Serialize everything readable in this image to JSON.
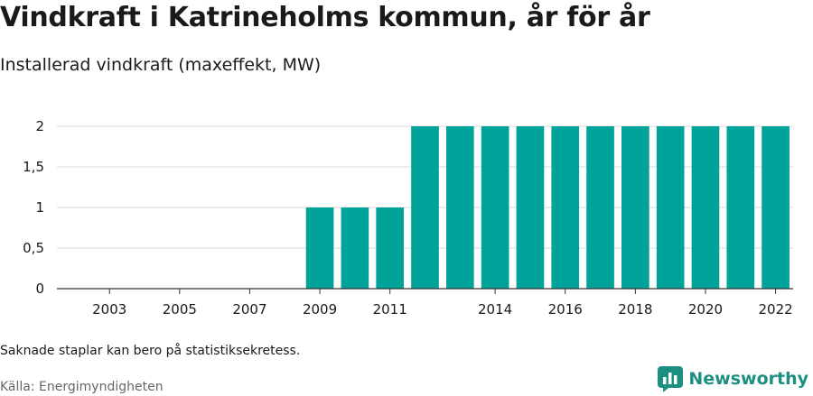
{
  "title": "Vindkraft i Katrineholms kommun, år för år",
  "subtitle": "Installerad vindkraft (maxeffekt, MW)",
  "note": "Saknade staplar kan bero på statistiksekretess.",
  "source": "Källa: Energimyndigheten",
  "brand": {
    "name": "Newsworthy",
    "icon": "newsworthy-logo-icon",
    "color": "#1c8f80"
  },
  "colors": {
    "bar": "#00a39a",
    "grid": "#d9d9d9",
    "axis": "#333333"
  },
  "chart_data": {
    "type": "bar",
    "categories": [
      "2002",
      "2003",
      "2004",
      "2005",
      "2006",
      "2007",
      "2008",
      "2009",
      "2010",
      "2011",
      "2012",
      "2013",
      "2014",
      "2015",
      "2016",
      "2017",
      "2018",
      "2019",
      "2020",
      "2021",
      "2022"
    ],
    "values": [
      null,
      null,
      null,
      null,
      null,
      null,
      null,
      1,
      1,
      1,
      2,
      2,
      2,
      2,
      2,
      2,
      2,
      2,
      2,
      2,
      2
    ],
    "x_tick_labels": [
      "2003",
      "2005",
      "2007",
      "2009",
      "2011",
      "2014",
      "2016",
      "2018",
      "2020",
      "2022"
    ],
    "y_ticks": [
      0,
      0.5,
      1,
      1.5,
      2
    ],
    "y_tick_labels": [
      "0",
      "0,5",
      "1",
      "1,5",
      "2"
    ],
    "ylim": [
      0,
      2
    ],
    "grid": true,
    "xlabel": "",
    "ylabel": ""
  }
}
